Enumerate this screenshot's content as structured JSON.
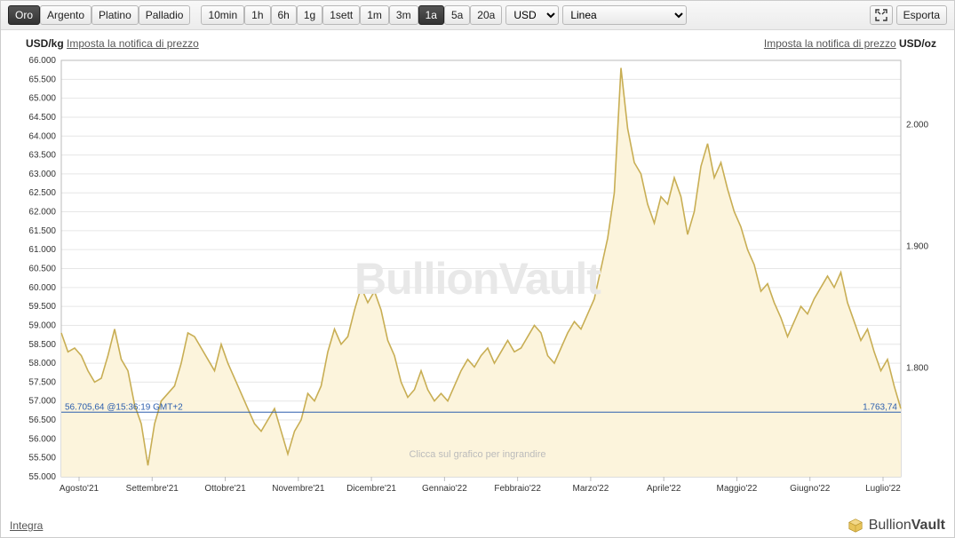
{
  "toolbar": {
    "metals": [
      "Oro",
      "Argento",
      "Platino",
      "Palladio"
    ],
    "metal_active_index": 0,
    "timeframes": [
      "10min",
      "1h",
      "6h",
      "1g",
      "1sett",
      "1m",
      "3m",
      "1a",
      "5a",
      "20a"
    ],
    "timeframe_active_index": 7,
    "currency": "USD",
    "chart_type": "Linea",
    "export_label": "Esporta"
  },
  "header": {
    "left_unit": "USD/kg",
    "left_link": "Imposta la notifica di prezzo",
    "right_link": "Imposta la notifica di prezzo",
    "right_unit": "USD/oz"
  },
  "footer": {
    "integra": "Integra",
    "brand_light": "Bullion",
    "brand_bold": "Vault"
  },
  "watermark": "BullionVault",
  "click_hint": "Clicca sul grafico per ingrandire",
  "chart": {
    "type": "area-line",
    "line_color": "#c8ae54",
    "fill_color": "#fcf4dc",
    "grid_color": "#e6e6e6",
    "axis_color": "#bbbbbb",
    "priceline_color": "#2d5fae",
    "priceline_value_left": "56.705,64",
    "priceline_time": "@15:36:19 GMT+2",
    "priceline_value_right": "1.763,74",
    "priceline_y": 56705.64,
    "y_left_min": 55000,
    "y_left_max": 66000,
    "y_left_ticks": [
      55000,
      55500,
      56000,
      56500,
      57000,
      57500,
      58000,
      58500,
      59000,
      59500,
      60000,
      60500,
      61000,
      61500,
      62000,
      62500,
      63000,
      63500,
      64000,
      64500,
      65000,
      65500,
      66000
    ],
    "y_left_labels": [
      "55.000",
      "55.500",
      "56.000",
      "56.500",
      "57.000",
      "57.500",
      "58.000",
      "58.500",
      "59.000",
      "59.500",
      "60.000",
      "60.500",
      "61.000",
      "61.500",
      "62.000",
      "62.500",
      "63.000",
      "63.500",
      "64.000",
      "64.500",
      "65.000",
      "65.500",
      "66.000"
    ],
    "y_right_ticks": [
      1800,
      1900,
      2000
    ],
    "y_right_labels": [
      "1.800",
      "1.900",
      "2.000"
    ],
    "x_labels": [
      "Agosto'21",
      "Settembre'21",
      "Ottobre'21",
      "Novembre'21",
      "Dicembre'21",
      "Gennaio'22",
      "Febbraio'22",
      "Marzo'22",
      "Aprile'22",
      "Maggio'22",
      "Giugno'22",
      "Luglio'22"
    ],
    "series": [
      58800,
      58300,
      58400,
      58200,
      57800,
      57500,
      57600,
      58200,
      58900,
      58100,
      57800,
      56900,
      56400,
      55300,
      56400,
      57000,
      57200,
      57400,
      58000,
      58800,
      58700,
      58400,
      58100,
      57800,
      58500,
      58000,
      57600,
      57200,
      56800,
      56400,
      56200,
      56500,
      56800,
      56200,
      55600,
      56200,
      56500,
      57200,
      57000,
      57400,
      58300,
      58900,
      58500,
      58700,
      59400,
      60000,
      59600,
      59900,
      59400,
      58600,
      58200,
      57500,
      57100,
      57300,
      57800,
      57300,
      57000,
      57200,
      57000,
      57400,
      57800,
      58100,
      57900,
      58200,
      58400,
      58000,
      58300,
      58600,
      58300,
      58400,
      58700,
      59000,
      58800,
      58200,
      58000,
      58400,
      58800,
      59100,
      58900,
      59300,
      59700,
      60500,
      61300,
      62500,
      65800,
      64200,
      63300,
      63000,
      62200,
      61700,
      62400,
      62200,
      62900,
      62400,
      61400,
      62000,
      63200,
      63800,
      62900,
      63300,
      62600,
      62000,
      61600,
      61000,
      60600,
      59900,
      60100,
      59600,
      59200,
      58700,
      59100,
      59500,
      59300,
      59700,
      60000,
      60300,
      60000,
      60400,
      59600,
      59100,
      58600,
      58900,
      58300,
      57800,
      58100,
      57400,
      56800
    ]
  }
}
